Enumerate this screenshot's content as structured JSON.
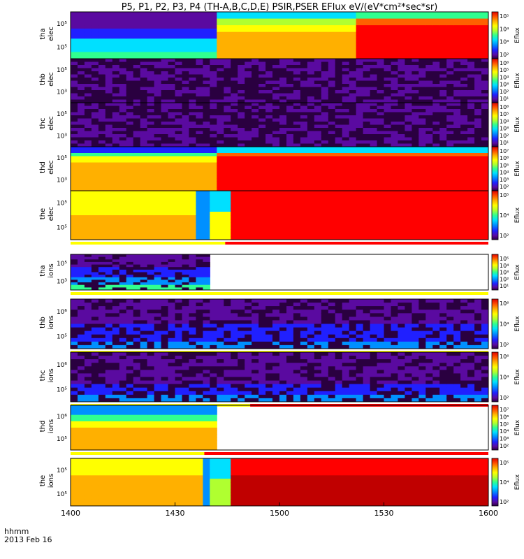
{
  "title": "P5, P1, P2, P3, P4 (TH-A,B,C,D,E) PSIR,PSER EFlux eV/(eV*cm²*sec*sr)",
  "chart_data": {
    "type": "heatmap",
    "x_axis": {
      "unit_label": "hhmm",
      "date_label": "2013 Feb 16",
      "range": [
        "1400",
        "1600"
      ],
      "tick_labels": [
        "1400",
        "1430",
        "1500",
        "1530",
        "1600"
      ]
    },
    "colorbar_label": "Eflux",
    "panels": [
      {
        "probe": "tha",
        "species": "elec",
        "y_ticks": [
          "10⁵",
          "10⁵"
        ],
        "cb_ticks": [
          "10⁵",
          "10⁴",
          "10³",
          "10²"
        ],
        "mode_bar": false,
        "data_end": 1
      },
      {
        "probe": "thb",
        "species": "elec",
        "y_ticks": [
          "10⁵",
          "10³"
        ],
        "cb_ticks": [
          "10⁶",
          "10⁵",
          "10⁴",
          "10³",
          "10²",
          "10¹"
        ],
        "mode_bar": false,
        "data_end": 1
      },
      {
        "probe": "thc",
        "species": "elec",
        "y_ticks": [
          "10⁵",
          "10³"
        ],
        "cb_ticks": [
          "10⁶",
          "10⁵",
          "10⁴",
          "10³",
          "10²",
          "10¹"
        ],
        "mode_bar": false,
        "data_end": 1
      },
      {
        "probe": "thd",
        "species": "elec",
        "y_ticks": [
          "10⁵",
          "10³"
        ],
        "cb_ticks": [
          "10⁷",
          "10⁶",
          "10⁵",
          "10⁴",
          "10³",
          "10²"
        ],
        "mode_bar": false,
        "data_end": 1
      },
      {
        "probe": "the",
        "species": "elec",
        "y_ticks": [
          "10⁵",
          "10⁵"
        ],
        "cb_ticks": [
          "10⁵",
          "10⁴",
          "10²"
        ],
        "mode_bar": true,
        "mode_bar_switch": 0.37,
        "data_end": 1
      },
      {
        "probe": "tha",
        "species": "ions",
        "y_ticks": [
          "10⁵",
          "10³"
        ],
        "cb_ticks": [
          "10⁵",
          "10⁴",
          "10³",
          "10²",
          "10¹"
        ],
        "mode_bar": true,
        "mode_bar_switch": 1.0,
        "data_end": 0.33
      },
      {
        "probe": "thb",
        "species": "ions",
        "y_ticks": [
          "10⁶",
          "10⁵"
        ],
        "cb_ticks": [
          "10⁶",
          "10⁴",
          "10²"
        ],
        "mode_bar": true,
        "mode_bar_switch": 1.0,
        "data_end": 1
      },
      {
        "probe": "thc",
        "species": "ions",
        "y_ticks": [
          "10⁶",
          "10⁵"
        ],
        "cb_ticks": [
          "10⁶",
          "10⁴",
          "10²"
        ],
        "mode_bar": true,
        "mode_bar_switch": 0.43,
        "data_end": 1
      },
      {
        "probe": "thd",
        "species": "ions",
        "y_ticks": [
          "10⁶",
          "10⁵"
        ],
        "cb_ticks": [
          "10⁷",
          "10⁶",
          "10⁵",
          "10⁴",
          "10³",
          "10²"
        ],
        "mode_bar": true,
        "mode_bar_switch": 0.32,
        "data_end": 0.35
      },
      {
        "probe": "the",
        "species": "ions",
        "y_ticks": [
          "10⁵",
          "10⁵"
        ],
        "cb_ticks": [
          "10⁵",
          "10⁴",
          "10²"
        ],
        "mode_bar": false,
        "data_end": 1
      }
    ],
    "colorscale": [
      "#2a0040",
      "#5a0aa0",
      "#2020ff",
      "#0090ff",
      "#00e0ff",
      "#30ff90",
      "#b0ff30",
      "#ffff00",
      "#ffb000",
      "#ff6000",
      "#ff0000",
      "#c00000"
    ],
    "mode_bar_colors": {
      "slow": "#ffff00",
      "fast": "#ff0000"
    }
  }
}
